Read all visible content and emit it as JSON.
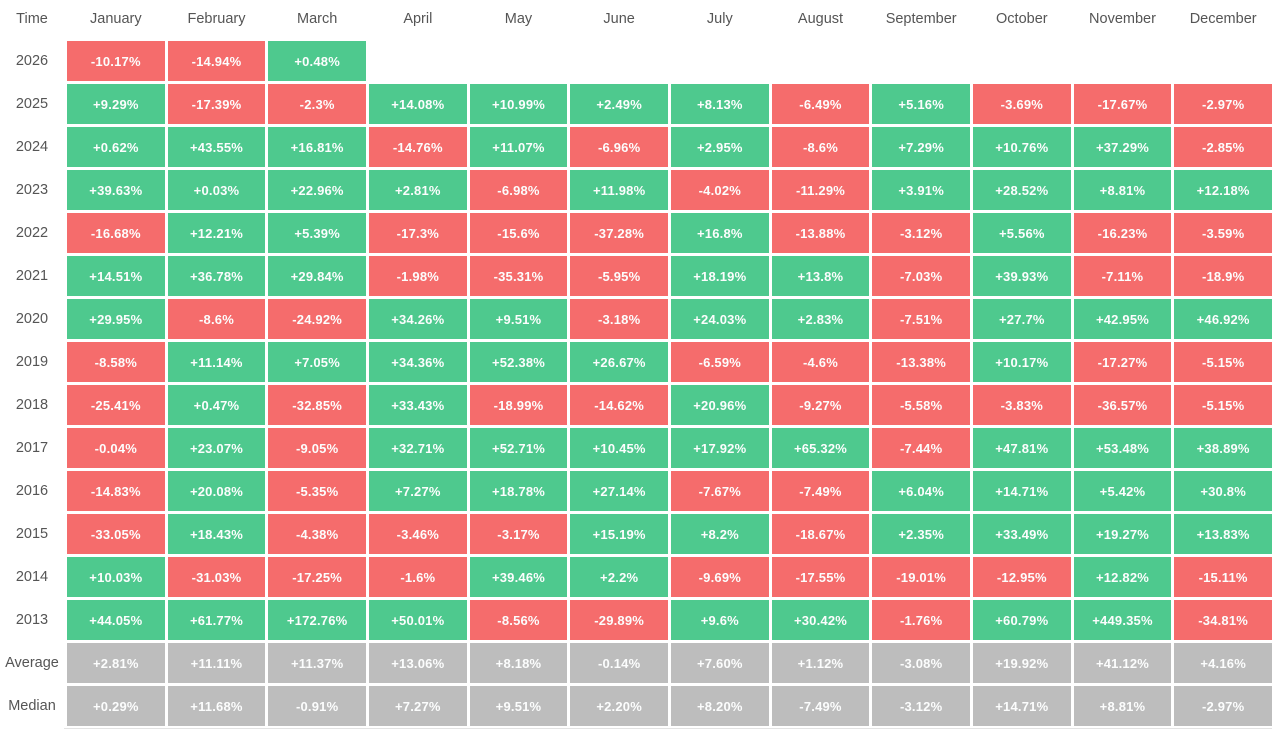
{
  "palette": {
    "positive": "#4ec98e",
    "negative": "#f56c6c",
    "summary": "#bdbdbd",
    "cell_text": "#fcfdfd",
    "label_text": "#555555",
    "background": "#ffffff",
    "divider": "#e3e3e3"
  },
  "columns": [
    "Time",
    "January",
    "February",
    "March",
    "April",
    "May",
    "June",
    "July",
    "August",
    "September",
    "October",
    "November",
    "December"
  ],
  "rows": [
    {
      "label": "2026",
      "type": "year",
      "values": [
        "-10.17%",
        "-14.94%",
        "+0.48%",
        "",
        "",
        "",
        "",
        "",
        "",
        "",
        "",
        ""
      ]
    },
    {
      "label": "2025",
      "type": "year",
      "values": [
        "+9.29%",
        "-17.39%",
        "-2.3%",
        "+14.08%",
        "+10.99%",
        "+2.49%",
        "+8.13%",
        "-6.49%",
        "+5.16%",
        "-3.69%",
        "-17.67%",
        "-2.97%"
      ]
    },
    {
      "label": "2024",
      "type": "year",
      "values": [
        "+0.62%",
        "+43.55%",
        "+16.81%",
        "-14.76%",
        "+11.07%",
        "-6.96%",
        "+2.95%",
        "-8.6%",
        "+7.29%",
        "+10.76%",
        "+37.29%",
        "-2.85%"
      ]
    },
    {
      "label": "2023",
      "type": "year",
      "values": [
        "+39.63%",
        "+0.03%",
        "+22.96%",
        "+2.81%",
        "-6.98%",
        "+11.98%",
        "-4.02%",
        "-11.29%",
        "+3.91%",
        "+28.52%",
        "+8.81%",
        "+12.18%"
      ]
    },
    {
      "label": "2022",
      "type": "year",
      "values": [
        "-16.68%",
        "+12.21%",
        "+5.39%",
        "-17.3%",
        "-15.6%",
        "-37.28%",
        "+16.8%",
        "-13.88%",
        "-3.12%",
        "+5.56%",
        "-16.23%",
        "-3.59%"
      ]
    },
    {
      "label": "2021",
      "type": "year",
      "values": [
        "+14.51%",
        "+36.78%",
        "+29.84%",
        "-1.98%",
        "-35.31%",
        "-5.95%",
        "+18.19%",
        "+13.8%",
        "-7.03%",
        "+39.93%",
        "-7.11%",
        "-18.9%"
      ]
    },
    {
      "label": "2020",
      "type": "year",
      "values": [
        "+29.95%",
        "-8.6%",
        "-24.92%",
        "+34.26%",
        "+9.51%",
        "-3.18%",
        "+24.03%",
        "+2.83%",
        "-7.51%",
        "+27.7%",
        "+42.95%",
        "+46.92%"
      ]
    },
    {
      "label": "2019",
      "type": "year",
      "values": [
        "-8.58%",
        "+11.14%",
        "+7.05%",
        "+34.36%",
        "+52.38%",
        "+26.67%",
        "-6.59%",
        "-4.6%",
        "-13.38%",
        "+10.17%",
        "-17.27%",
        "-5.15%"
      ]
    },
    {
      "label": "2018",
      "type": "year",
      "values": [
        "-25.41%",
        "+0.47%",
        "-32.85%",
        "+33.43%",
        "-18.99%",
        "-14.62%",
        "+20.96%",
        "-9.27%",
        "-5.58%",
        "-3.83%",
        "-36.57%",
        "-5.15%"
      ]
    },
    {
      "label": "2017",
      "type": "year",
      "values": [
        "-0.04%",
        "+23.07%",
        "-9.05%",
        "+32.71%",
        "+52.71%",
        "+10.45%",
        "+17.92%",
        "+65.32%",
        "-7.44%",
        "+47.81%",
        "+53.48%",
        "+38.89%"
      ]
    },
    {
      "label": "2016",
      "type": "year",
      "values": [
        "-14.83%",
        "+20.08%",
        "-5.35%",
        "+7.27%",
        "+18.78%",
        "+27.14%",
        "-7.67%",
        "-7.49%",
        "+6.04%",
        "+14.71%",
        "+5.42%",
        "+30.8%"
      ]
    },
    {
      "label": "2015",
      "type": "year",
      "values": [
        "-33.05%",
        "+18.43%",
        "-4.38%",
        "-3.46%",
        "-3.17%",
        "+15.19%",
        "+8.2%",
        "-18.67%",
        "+2.35%",
        "+33.49%",
        "+19.27%",
        "+13.83%"
      ]
    },
    {
      "label": "2014",
      "type": "year",
      "values": [
        "+10.03%",
        "-31.03%",
        "-17.25%",
        "-1.6%",
        "+39.46%",
        "+2.2%",
        "-9.69%",
        "-17.55%",
        "-19.01%",
        "-12.95%",
        "+12.82%",
        "-15.11%"
      ]
    },
    {
      "label": "2013",
      "type": "year",
      "values": [
        "+44.05%",
        "+61.77%",
        "+172.76%",
        "+50.01%",
        "-8.56%",
        "-29.89%",
        "+9.6%",
        "+30.42%",
        "-1.76%",
        "+60.79%",
        "+449.35%",
        "-34.81%"
      ]
    },
    {
      "label": "Average",
      "type": "summary",
      "values": [
        "+2.81%",
        "+11.11%",
        "+11.37%",
        "+13.06%",
        "+8.18%",
        "-0.14%",
        "+7.60%",
        "+1.12%",
        "-3.08%",
        "+19.92%",
        "+41.12%",
        "+4.16%"
      ]
    },
    {
      "label": "Median",
      "type": "summary",
      "values": [
        "+0.29%",
        "+11.68%",
        "-0.91%",
        "+7.27%",
        "+9.51%",
        "+2.20%",
        "+8.20%",
        "-7.49%",
        "-3.12%",
        "+14.71%",
        "+8.81%",
        "-2.97%"
      ]
    }
  ],
  "chart_data": {
    "type": "heatmap",
    "title": "Monthly returns by year (%)",
    "x_categories": [
      "January",
      "February",
      "March",
      "April",
      "May",
      "June",
      "July",
      "August",
      "September",
      "October",
      "November",
      "December"
    ],
    "y_categories": [
      "2026",
      "2025",
      "2024",
      "2023",
      "2022",
      "2021",
      "2020",
      "2019",
      "2018",
      "2017",
      "2016",
      "2015",
      "2014",
      "2013",
      "Average",
      "Median"
    ],
    "values": [
      [
        -10.17,
        -14.94,
        0.48,
        null,
        null,
        null,
        null,
        null,
        null,
        null,
        null,
        null
      ],
      [
        9.29,
        -17.39,
        -2.3,
        14.08,
        10.99,
        2.49,
        8.13,
        -6.49,
        5.16,
        -3.69,
        -17.67,
        -2.97
      ],
      [
        0.62,
        43.55,
        16.81,
        -14.76,
        11.07,
        -6.96,
        2.95,
        -8.6,
        7.29,
        10.76,
        37.29,
        -2.85
      ],
      [
        39.63,
        0.03,
        22.96,
        2.81,
        -6.98,
        11.98,
        -4.02,
        -11.29,
        3.91,
        28.52,
        8.81,
        12.18
      ],
      [
        -16.68,
        12.21,
        5.39,
        -17.3,
        -15.6,
        -37.28,
        16.8,
        -13.88,
        -3.12,
        5.56,
        -16.23,
        -3.59
      ],
      [
        14.51,
        36.78,
        29.84,
        -1.98,
        -35.31,
        -5.95,
        18.19,
        13.8,
        -7.03,
        39.93,
        -7.11,
        -18.9
      ],
      [
        29.95,
        -8.6,
        -24.92,
        34.26,
        9.51,
        -3.18,
        24.03,
        2.83,
        -7.51,
        27.7,
        42.95,
        46.92
      ],
      [
        -8.58,
        11.14,
        7.05,
        34.36,
        52.38,
        26.67,
        -6.59,
        -4.6,
        -13.38,
        10.17,
        -17.27,
        -5.15
      ],
      [
        -25.41,
        0.47,
        -32.85,
        33.43,
        -18.99,
        -14.62,
        20.96,
        -9.27,
        -5.58,
        -3.83,
        -36.57,
        -5.15
      ],
      [
        -0.04,
        23.07,
        -9.05,
        32.71,
        52.71,
        10.45,
        17.92,
        65.32,
        -7.44,
        47.81,
        53.48,
        38.89
      ],
      [
        -14.83,
        20.08,
        -5.35,
        7.27,
        18.78,
        27.14,
        -7.67,
        -7.49,
        6.04,
        14.71,
        5.42,
        30.8
      ],
      [
        -33.05,
        18.43,
        -4.38,
        -3.46,
        -3.17,
        15.19,
        8.2,
        -18.67,
        2.35,
        33.49,
        19.27,
        13.83
      ],
      [
        10.03,
        -31.03,
        -17.25,
        -1.6,
        39.46,
        2.2,
        -9.69,
        -17.55,
        -19.01,
        -12.95,
        12.82,
        -15.11
      ],
      [
        44.05,
        61.77,
        172.76,
        50.01,
        -8.56,
        -29.89,
        9.6,
        30.42,
        -1.76,
        60.79,
        449.35,
        -34.81
      ],
      [
        2.81,
        11.11,
        11.37,
        13.06,
        8.18,
        -0.14,
        7.6,
        1.12,
        -3.08,
        19.92,
        41.12,
        4.16
      ],
      [
        0.29,
        11.68,
        -0.91,
        7.27,
        9.51,
        2.2,
        8.2,
        -7.49,
        -3.12,
        14.71,
        8.81,
        -2.97
      ]
    ],
    "color_rule": "green if value > 0, red if value < 0, gray for Average/Median rows",
    "legend": "none",
    "grid": false
  }
}
